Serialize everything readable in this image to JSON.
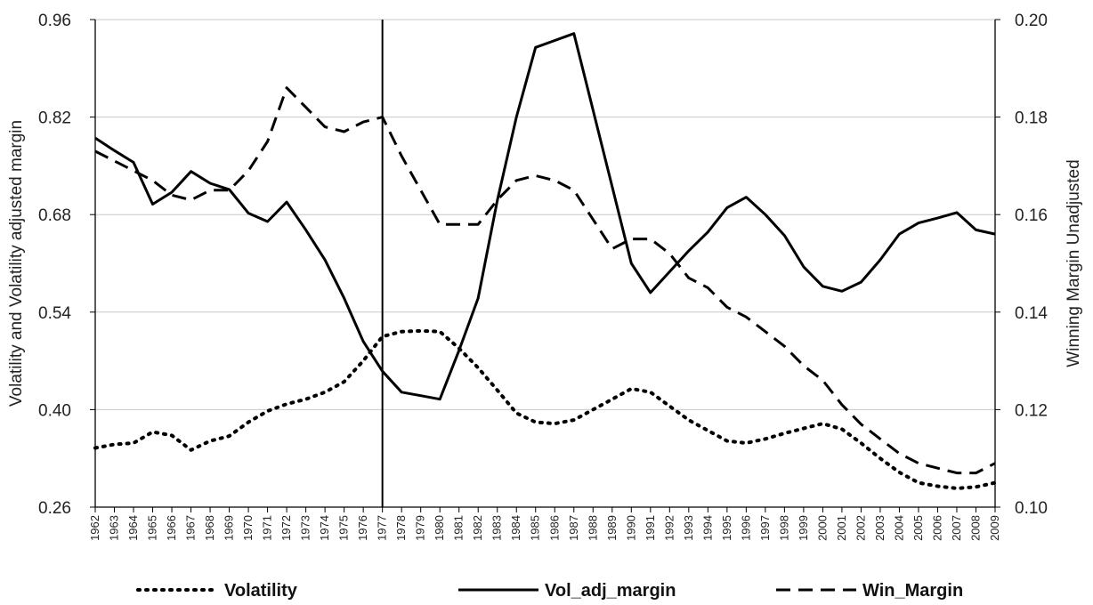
{
  "chart_data": {
    "type": "line",
    "x": [
      1962,
      1963,
      1964,
      1965,
      1966,
      1967,
      1968,
      1969,
      1970,
      1971,
      1972,
      1973,
      1974,
      1975,
      1976,
      1977,
      1978,
      1979,
      1980,
      1981,
      1982,
      1983,
      1984,
      1985,
      1986,
      1987,
      1988,
      1989,
      1990,
      1991,
      1992,
      1993,
      1994,
      1995,
      1996,
      1997,
      1998,
      1999,
      2000,
      2001,
      2002,
      2003,
      2004,
      2005,
      2006,
      2007,
      2008,
      2009
    ],
    "series": [
      {
        "name": "Volatility",
        "axis": "left",
        "dash": "dotted",
        "values": [
          0.345,
          0.35,
          0.352,
          0.368,
          0.363,
          0.342,
          0.355,
          0.362,
          0.382,
          0.398,
          0.408,
          0.415,
          0.425,
          0.44,
          0.47,
          0.505,
          0.512,
          0.513,
          0.512,
          0.488,
          0.46,
          0.428,
          0.395,
          0.382,
          0.38,
          0.385,
          0.4,
          0.415,
          0.43,
          0.425,
          0.405,
          0.385,
          0.37,
          0.355,
          0.352,
          0.358,
          0.366,
          0.373,
          0.38,
          0.372,
          0.352,
          0.33,
          0.31,
          0.295,
          0.29,
          0.287,
          0.289,
          0.295
        ]
      },
      {
        "name": "Vol_adj_margin",
        "axis": "left",
        "dash": "solid",
        "values": [
          0.79,
          0.772,
          0.755,
          0.695,
          0.712,
          0.742,
          0.725,
          0.716,
          0.682,
          0.67,
          0.698,
          0.658,
          0.615,
          0.56,
          0.498,
          0.455,
          0.425,
          0.42,
          0.415,
          0.485,
          0.56,
          0.7,
          0.82,
          0.92,
          0.93,
          0.94,
          0.83,
          0.72,
          0.61,
          0.568,
          0.598,
          0.628,
          0.655,
          0.69,
          0.705,
          0.68,
          0.65,
          0.605,
          0.577,
          0.57,
          0.583,
          0.615,
          0.652,
          0.668,
          0.675,
          0.683,
          0.658,
          0.652
        ]
      },
      {
        "name": "Win_Margin",
        "axis": "right",
        "dash": "dashed",
        "values": [
          0.173,
          0.171,
          0.169,
          0.167,
          0.164,
          0.163,
          0.165,
          0.165,
          0.169,
          0.175,
          0.186,
          0.182,
          0.178,
          0.177,
          0.179,
          0.18,
          0.172,
          0.165,
          0.158,
          0.158,
          0.158,
          0.163,
          0.167,
          0.168,
          0.167,
          0.165,
          0.159,
          0.153,
          0.155,
          0.155,
          0.152,
          0.147,
          0.145,
          0.141,
          0.139,
          0.136,
          0.133,
          0.129,
          0.126,
          0.121,
          0.117,
          0.114,
          0.111,
          0.109,
          0.108,
          0.107,
          0.107,
          0.109
        ]
      }
    ],
    "left_axis": {
      "label": "Volatility and Volatility adjusted margin",
      "ylim": [
        0.26,
        0.96
      ],
      "ticks": [
        "0.26",
        "0.40",
        "0.54",
        "0.68",
        "0.82",
        "0.96"
      ]
    },
    "right_axis": {
      "label": "Winning Margin Unadjusted",
      "ylim": [
        0.1,
        0.2
      ],
      "ticks": [
        "0.10",
        "0.12",
        "0.14",
        "0.16",
        "0.18",
        "0.20"
      ]
    },
    "vertical_marker": 1977,
    "grid": true,
    "legend": "bottom"
  }
}
